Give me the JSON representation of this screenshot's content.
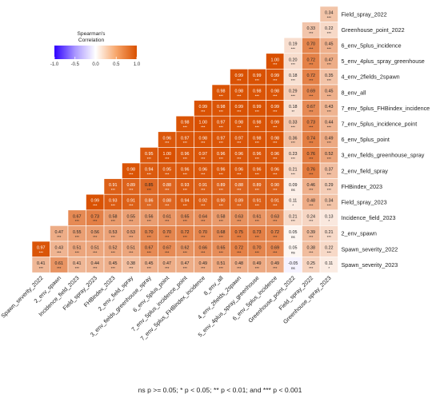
{
  "chart_data": {
    "type": "heatmap",
    "title": "",
    "legend": {
      "title_lines": [
        "Spearman's",
        "Correlation"
      ],
      "ticks": [
        "-1.0",
        "-0.5",
        "0.0",
        "0.5",
        "1.0"
      ],
      "tick_values": [
        -1.0,
        -0.5,
        0.0,
        0.5,
        1.0
      ],
      "range": [
        -1.0,
        1.0
      ],
      "placement": "top-left",
      "colors": {
        "low": "#2e00ff",
        "mid": "#ffffff",
        "high": "#d95000"
      }
    },
    "x_labels": [
      "Spawn_severity_2022",
      "2_env_spawn",
      "Incidence_field_2023",
      "Field_spray_2023",
      "FHBindex_2023",
      "2_env_field_spray",
      "3_env_fields_greenhouse_spray",
      "6_env_5plus_point",
      "7_env_5plus_incidence_point",
      "7_env_5plus_FHBindex_incidence",
      "8_env_all",
      "4_env_2fields_2spawn",
      "5_env_4plus_spray_greenhouse",
      "6_env_5plus_incidence",
      "Greenhouse_point_2022",
      "Field_spray_2022",
      "Greenhouse_spray_2023"
    ],
    "y_labels": [
      "Field_spray_2022",
      "Greenhouse_point_2022",
      "6_env_5plus_incidence",
      "5_env_4plus_spray_greenhouse",
      "4_env_2fields_2spawn",
      "8_env_all",
      "7_env_5plus_FHBindex_incidence",
      "7_env_5plus_incidence_point",
      "6_env_5plus_point",
      "3_env_fields_greenhouse_spray",
      "2_env_field_spray",
      "FHBindex_2023",
      "Field_spray_2023",
      "Incidence_field_2023",
      "2_env_spawn",
      "Spawn_severity_2022",
      "Spawn_severity_2023"
    ],
    "values": [
      [
        null,
        null,
        null,
        null,
        null,
        null,
        null,
        null,
        null,
        null,
        null,
        null,
        null,
        null,
        null,
        null,
        0.34
      ],
      [
        null,
        null,
        null,
        null,
        null,
        null,
        null,
        null,
        null,
        null,
        null,
        null,
        null,
        null,
        null,
        0.33,
        0.22
      ],
      [
        null,
        null,
        null,
        null,
        null,
        null,
        null,
        null,
        null,
        null,
        null,
        null,
        null,
        null,
        0.19,
        0.7,
        0.45
      ],
      [
        null,
        null,
        null,
        null,
        null,
        null,
        null,
        null,
        null,
        null,
        null,
        null,
        null,
        1.0,
        0.2,
        0.72,
        0.47
      ],
      [
        null,
        null,
        null,
        null,
        null,
        null,
        null,
        null,
        null,
        null,
        null,
        0.99,
        0.99,
        0.99,
        0.18,
        0.72,
        0.35
      ],
      [
        null,
        null,
        null,
        null,
        null,
        null,
        null,
        null,
        null,
        null,
        0.98,
        0.98,
        0.98,
        0.98,
        0.29,
        0.69,
        0.45
      ],
      [
        null,
        null,
        null,
        null,
        null,
        null,
        null,
        null,
        null,
        0.99,
        0.98,
        0.99,
        0.99,
        0.99,
        0.18,
        0.67,
        0.43
      ],
      [
        null,
        null,
        null,
        null,
        null,
        null,
        null,
        null,
        0.98,
        1.0,
        0.97,
        0.98,
        0.98,
        0.99,
        0.33,
        0.73,
        0.44
      ],
      [
        null,
        null,
        null,
        null,
        null,
        null,
        null,
        0.96,
        0.97,
        0.98,
        0.97,
        0.97,
        0.98,
        0.98,
        0.36,
        0.74,
        0.49
      ],
      [
        null,
        null,
        null,
        null,
        null,
        null,
        0.95,
        1.0,
        0.96,
        0.97,
        0.96,
        0.96,
        0.96,
        0.96,
        0.23,
        0.76,
        0.52
      ],
      [
        null,
        null,
        null,
        null,
        null,
        0.98,
        0.94,
        0.95,
        0.96,
        0.96,
        0.96,
        0.96,
        0.96,
        0.96,
        0.21,
        0.76,
        0.37
      ],
      [
        null,
        null,
        null,
        null,
        0.91,
        0.89,
        0.85,
        0.88,
        0.93,
        0.91,
        0.89,
        0.88,
        0.89,
        0.9,
        0.09,
        0.46,
        0.29
      ],
      [
        null,
        null,
        null,
        0.99,
        0.93,
        0.91,
        0.86,
        0.88,
        0.94,
        0.92,
        0.9,
        0.89,
        0.91,
        0.91,
        0.11,
        0.48,
        0.34
      ],
      [
        null,
        null,
        0.67,
        0.73,
        0.58,
        0.55,
        0.56,
        0.61,
        0.65,
        0.64,
        0.58,
        0.63,
        0.61,
        0.63,
        0.21,
        0.24,
        0.13
      ],
      [
        null,
        0.47,
        0.55,
        0.56,
        0.53,
        0.53,
        0.7,
        0.7,
        0.72,
        0.7,
        0.68,
        0.75,
        0.73,
        0.72,
        0.05,
        0.39,
        0.21
      ],
      [
        0.97,
        0.43,
        0.51,
        0.51,
        0.52,
        0.51,
        0.67,
        0.67,
        0.62,
        0.66,
        0.65,
        0.72,
        0.7,
        0.69,
        0.05,
        0.38,
        0.22
      ],
      [
        0.41,
        0.61,
        0.41,
        0.44,
        0.45,
        0.38,
        0.45,
        0.47,
        0.47,
        0.49,
        0.51,
        0.48,
        0.49,
        0.49,
        -0.05,
        0.25,
        0.11
      ]
    ],
    "significance": [
      [
        null,
        null,
        null,
        null,
        null,
        null,
        null,
        null,
        null,
        null,
        null,
        null,
        null,
        null,
        null,
        null,
        "***"
      ],
      [
        null,
        null,
        null,
        null,
        null,
        null,
        null,
        null,
        null,
        null,
        null,
        null,
        null,
        null,
        null,
        "***",
        "***"
      ],
      [
        null,
        null,
        null,
        null,
        null,
        null,
        null,
        null,
        null,
        null,
        null,
        null,
        null,
        null,
        "***",
        "***",
        "***"
      ],
      [
        null,
        null,
        null,
        null,
        null,
        null,
        null,
        null,
        null,
        null,
        null,
        null,
        null,
        "***",
        "***",
        "***",
        "***"
      ],
      [
        null,
        null,
        null,
        null,
        null,
        null,
        null,
        null,
        null,
        null,
        null,
        "***",
        "***",
        "***",
        "***",
        "***",
        "***"
      ],
      [
        null,
        null,
        null,
        null,
        null,
        null,
        null,
        null,
        null,
        null,
        "***",
        "***",
        "***",
        "***",
        "***",
        "***",
        "***"
      ],
      [
        null,
        null,
        null,
        null,
        null,
        null,
        null,
        null,
        null,
        "***",
        "***",
        "***",
        "***",
        "***",
        "**",
        "***",
        "***"
      ],
      [
        null,
        null,
        null,
        null,
        null,
        null,
        null,
        null,
        "***",
        "***",
        "***",
        "***",
        "***",
        "***",
        "***",
        "***",
        "***"
      ],
      [
        null,
        null,
        null,
        null,
        null,
        null,
        null,
        "***",
        "***",
        "***",
        "***",
        "***",
        "***",
        "***",
        "***",
        "***",
        "***"
      ],
      [
        null,
        null,
        null,
        null,
        null,
        null,
        "***",
        "***",
        "***",
        "***",
        "***",
        "***",
        "***",
        "***",
        "***",
        "***",
        "***"
      ],
      [
        null,
        null,
        null,
        null,
        null,
        "***",
        "***",
        "***",
        "***",
        "***",
        "***",
        "***",
        "***",
        "***",
        "***",
        "***",
        "***"
      ],
      [
        null,
        null,
        null,
        null,
        "***",
        "***",
        "***",
        "***",
        "***",
        "***",
        "***",
        "***",
        "***",
        "***",
        "ns",
        "***",
        "***"
      ],
      [
        null,
        null,
        null,
        "***",
        "***",
        "***",
        "***",
        "***",
        "***",
        "***",
        "***",
        "***",
        "***",
        "***",
        "*",
        "***",
        "***"
      ],
      [
        null,
        null,
        "***",
        "***",
        "***",
        "***",
        "***",
        "***",
        "***",
        "***",
        "***",
        "***",
        "***",
        "***",
        "***",
        "***",
        "*"
      ],
      [
        null,
        "***",
        "***",
        "***",
        "***",
        "***",
        "***",
        "***",
        "***",
        "***",
        "***",
        "***",
        "***",
        "***",
        "ns",
        "***",
        "***"
      ],
      [
        "***",
        "***",
        "***",
        "***",
        "***",
        "***",
        "***",
        "***",
        "***",
        "***",
        "***",
        "***",
        "***",
        "***",
        "ns",
        "***",
        "***"
      ],
      [
        "***",
        "***",
        "***",
        "***",
        "***",
        "***",
        "***",
        "***",
        "***",
        "***",
        "***",
        "***",
        "***",
        "***",
        "ns",
        "***",
        "*"
      ]
    ]
  },
  "footnote": "ns p >= 0.05; * p < 0.05; ** p < 0.01; and *** p < 0.001"
}
